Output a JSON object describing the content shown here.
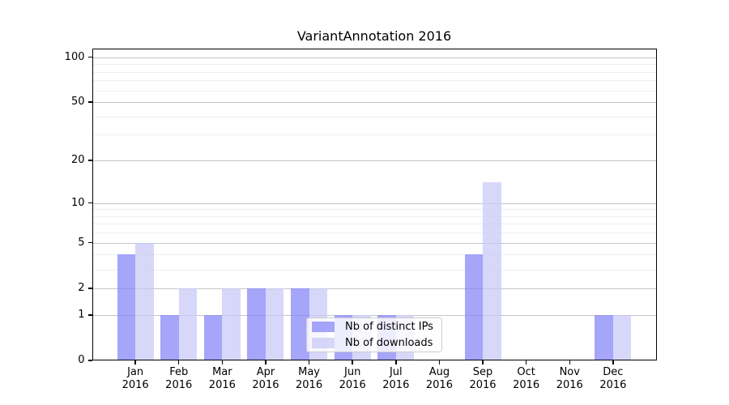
{
  "title": "VariantAnnotation 2016",
  "chart_data": {
    "type": "bar",
    "title": "VariantAnnotation 2016",
    "categories": [
      "Jan 2016",
      "Feb 2016",
      "Mar 2016",
      "Apr 2016",
      "May 2016",
      "Jun 2016",
      "Jul 2016",
      "Aug 2016",
      "Sep 2016",
      "Oct 2016",
      "Nov 2016",
      "Dec 2016"
    ],
    "category_months": [
      "Jan",
      "Feb",
      "Mar",
      "Apr",
      "May",
      "Jun",
      "Jul",
      "Aug",
      "Sep",
      "Oct",
      "Nov",
      "Dec"
    ],
    "category_year": "2016",
    "series": [
      {
        "name": "Nb of distinct IPs",
        "color": "rgba(130,130,248,0.72)",
        "values": [
          4,
          1,
          1,
          2,
          2,
          1,
          1,
          0,
          4,
          0,
          0,
          1
        ]
      },
      {
        "name": "Nb of downloads",
        "color": "rgba(200,200,248,0.72)",
        "values": [
          5,
          2,
          2,
          2,
          2,
          1,
          1,
          0,
          14,
          0,
          0,
          1
        ]
      }
    ],
    "yscale": "log1p",
    "ylim": [
      0,
      115
    ],
    "y_major_ticks": [
      0,
      1,
      2,
      5,
      10,
      20,
      50,
      100
    ],
    "y_minor_ticks": [
      3,
      4,
      6,
      7,
      8,
      9,
      30,
      40,
      60,
      70,
      80,
      90
    ],
    "grid": true,
    "legend_position": "lower center",
    "xlabel": "",
    "ylabel": ""
  },
  "colors": {
    "grid_major": "#c6c6c6",
    "grid_minor": "#efefef",
    "axis": "#000000",
    "background": "#ffffff",
    "legend_border": "#cccccc",
    "text": "#000000"
  }
}
